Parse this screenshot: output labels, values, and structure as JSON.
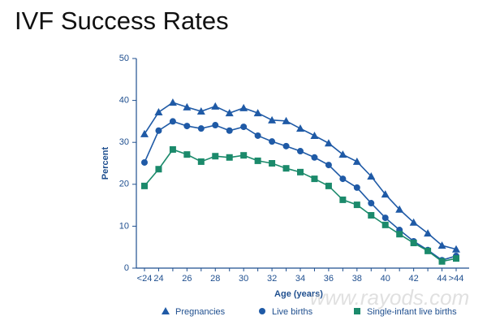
{
  "chart_data": {
    "type": "line",
    "title": "IVF Success Rates",
    "xlabel": "Age (years)",
    "ylabel": "Percent",
    "watermark": "www.rayods.com",
    "categories": [
      "<24",
      "24",
      null,
      "26",
      null,
      "28",
      null,
      "30",
      null,
      "32",
      null,
      "34",
      null,
      "36",
      null,
      "38",
      null,
      "40",
      null,
      "42",
      null,
      "44",
      ">44"
    ],
    "ylim": [
      0,
      50
    ],
    "yticks": [
      0,
      10,
      20,
      30,
      40,
      50
    ],
    "grid": false,
    "legend": "bottom",
    "series": [
      {
        "name": "Pregnancies",
        "color": "#1f5aa6",
        "marker": "triangle",
        "values": [
          32,
          37.2,
          39.5,
          38.4,
          37.4,
          38.6,
          37,
          38.2,
          37,
          35.3,
          35.1,
          33.3,
          31.6,
          29.8,
          27.1,
          25.4,
          21.9,
          17.6,
          14,
          10.9,
          8.3,
          5.4,
          4.5
        ]
      },
      {
        "name": "Live births",
        "color": "#1f5aa6",
        "marker": "circle",
        "values": [
          25.2,
          32.8,
          35,
          33.9,
          33.3,
          34.1,
          32.8,
          33.7,
          31.6,
          30.2,
          29.1,
          27.9,
          26.4,
          24.6,
          21.3,
          19.2,
          15.5,
          12,
          9.1,
          6.4,
          4.3,
          1.9,
          2.9
        ]
      },
      {
        "name": "Single-infant live births",
        "color": "#1b8a6b",
        "marker": "square",
        "values": [
          19.6,
          23.6,
          28.3,
          27.1,
          25.4,
          26.7,
          26.4,
          26.9,
          25.6,
          25,
          23.8,
          22.9,
          21.3,
          19.6,
          16.3,
          15.1,
          12.6,
          10.3,
          8.1,
          6,
          4.1,
          1.6,
          2.3
        ]
      }
    ]
  }
}
